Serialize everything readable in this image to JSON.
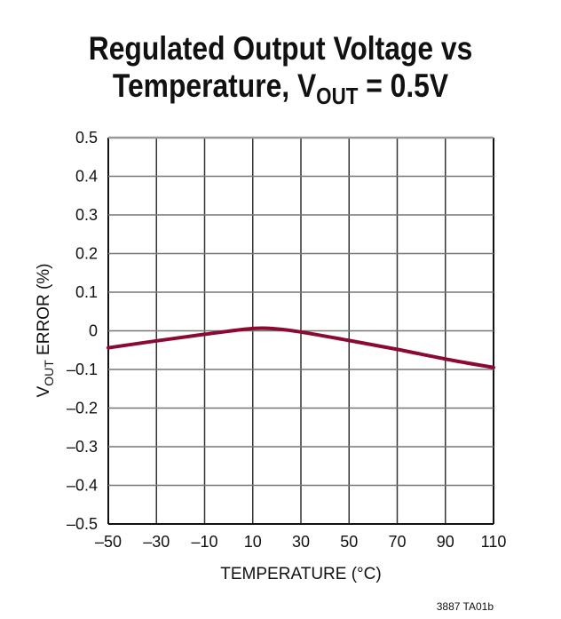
{
  "chart_data": {
    "type": "line",
    "title_main": "Regulated Output Voltage vs",
    "title_line2_prefix": "Temperature, V",
    "title_line2_sub": "OUT",
    "title_line2_suffix": " = 0.5V",
    "xlabel": "TEMPERATURE (°C)",
    "ylabel_prefix": "V",
    "ylabel_sub": "OUT",
    "ylabel_suffix": " ERROR (%)",
    "xlim": [
      -50,
      110
    ],
    "ylim": [
      -0.5,
      0.5
    ],
    "xticks": [
      "–50",
      "–30",
      "–10",
      "10",
      "30",
      "50",
      "70",
      "90",
      "110"
    ],
    "xtick_values": [
      -50,
      -30,
      -10,
      10,
      30,
      50,
      70,
      90,
      110
    ],
    "yticks": [
      "0.5",
      "0.4",
      "0.3",
      "0.2",
      "0.1",
      "0",
      "–0.1",
      "–0.2",
      "–0.3",
      "–0.4",
      "–0.5"
    ],
    "ytick_values": [
      0.5,
      0.4,
      0.3,
      0.2,
      0.1,
      0,
      -0.1,
      -0.2,
      -0.3,
      -0.4,
      -0.5
    ],
    "grid": true,
    "series": [
      {
        "color": "#8b0a32",
        "x": [
          -50,
          -30,
          -10,
          10,
          20,
          30,
          50,
          70,
          90,
          110
        ],
        "y": [
          -0.044,
          -0.026,
          -0.009,
          0.006,
          0.005,
          -0.003,
          -0.025,
          -0.048,
          -0.073,
          -0.095
        ]
      }
    ]
  },
  "footnote": "3887 TA01b"
}
